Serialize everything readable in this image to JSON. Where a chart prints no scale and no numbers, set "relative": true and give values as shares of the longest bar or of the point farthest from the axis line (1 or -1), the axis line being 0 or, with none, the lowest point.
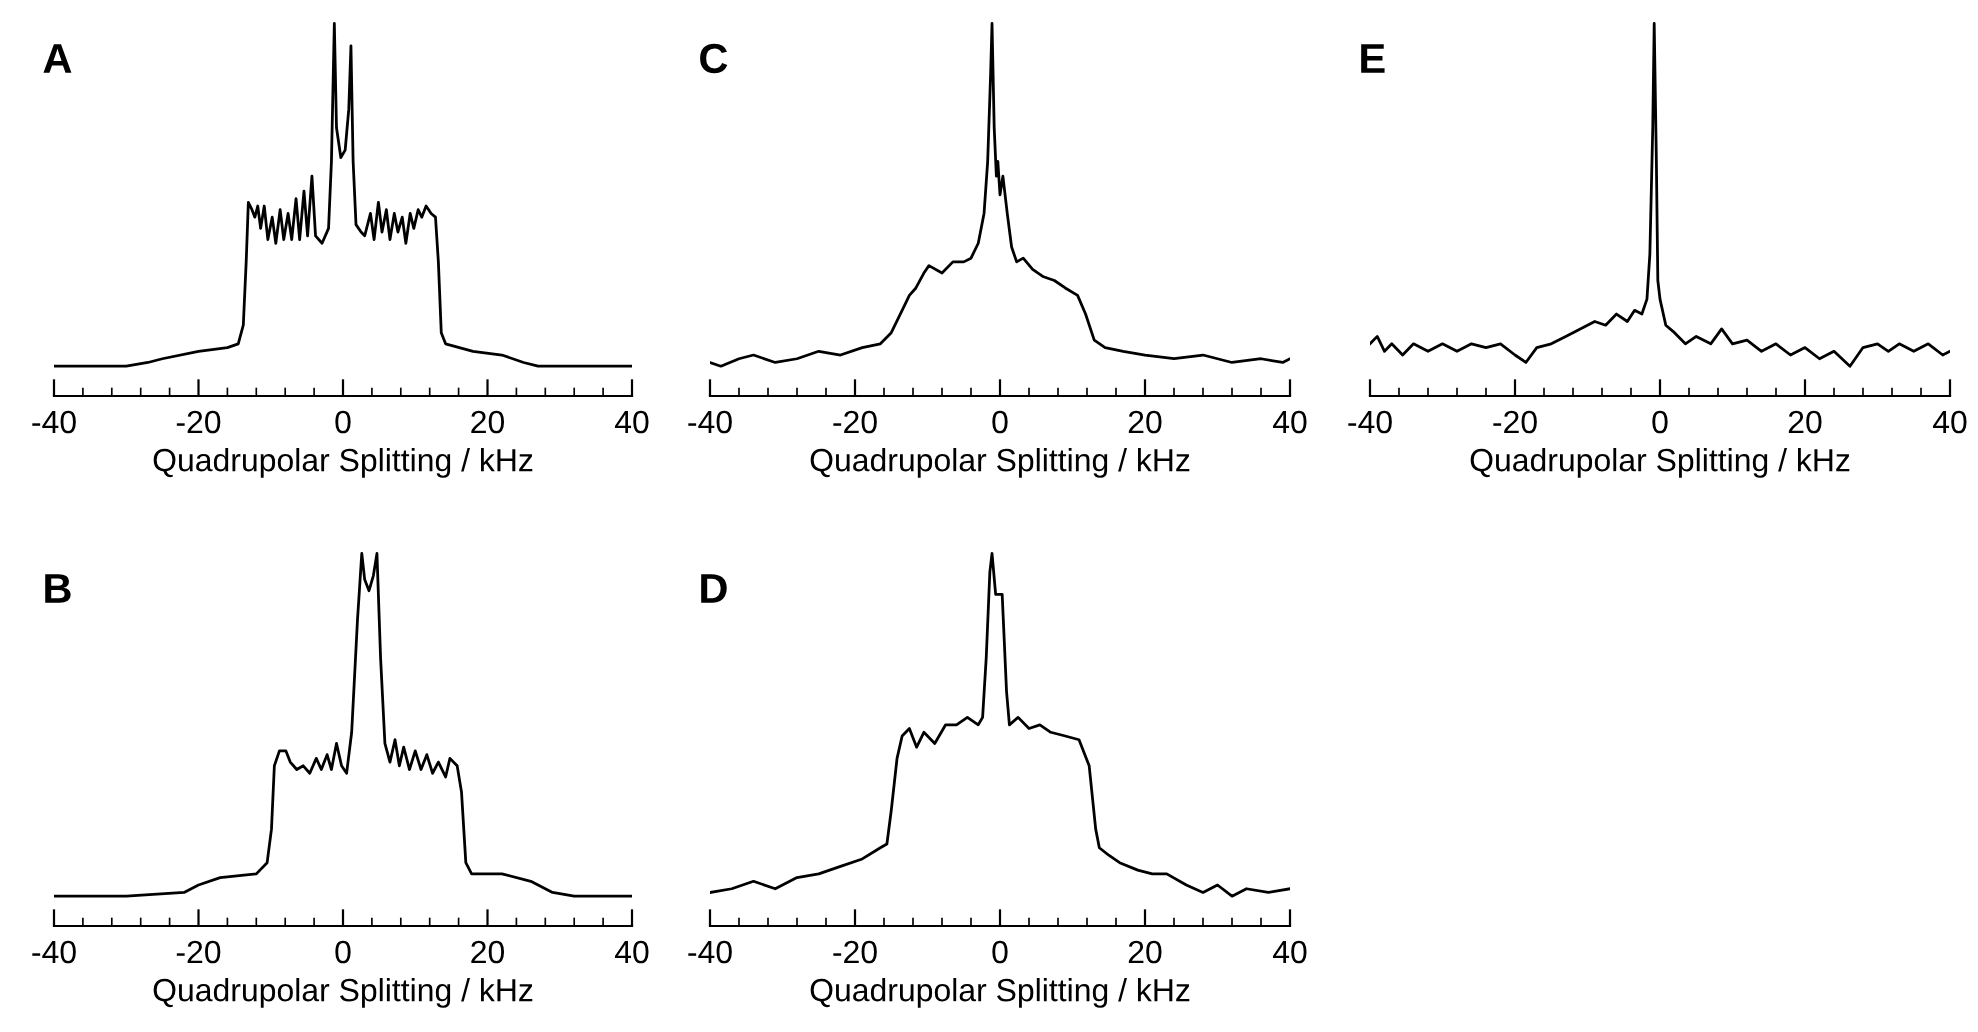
{
  "chart_data": [
    {
      "type": "line",
      "title": "A",
      "xlabel": "Quadrupolar Splitting / kHz",
      "relative": true,
      "xlim": [
        -40,
        40
      ],
      "xticks": [
        -40,
        {
          "value": -36,
          "label": null
        },
        {
          "value": -32,
          "label": null
        },
        {
          "value": -28,
          "label": null
        },
        {
          "value": -24,
          "label": null
        },
        -20,
        {
          "value": -16,
          "label": null
        },
        {
          "value": -12,
          "label": null
        },
        {
          "value": -8,
          "label": null
        },
        {
          "value": -4,
          "label": null
        },
        0,
        {
          "value": 4,
          "label": null
        },
        {
          "value": 8,
          "label": null
        },
        {
          "value": 12,
          "label": null
        },
        {
          "value": 16,
          "label": null
        },
        20,
        {
          "value": 24,
          "label": null
        },
        {
          "value": 28,
          "label": null
        },
        {
          "value": 32,
          "label": null
        },
        {
          "value": 36,
          "label": null
        },
        40
      ],
      "series": [
        {
          "color": "#000000",
          "x": [
            -40,
            -30,
            -27,
            -25,
            -20,
            -16,
            -14.5,
            -13.8,
            -13.4,
            -13.1,
            -12.6,
            -12.2,
            -11.8,
            -11.4,
            -10.9,
            -10.4,
            -9.8,
            -9.3,
            -8.7,
            -8.2,
            -7.6,
            -7.1,
            -6.5,
            -6.0,
            -5.4,
            -4.9,
            -4.3,
            -3.8,
            -2.9,
            -2.0,
            -1.6,
            -1.2,
            -0.9,
            -0.3,
            0.3,
            0.8,
            1.1,
            1.4,
            1.8,
            2.5,
            3.0,
            3.8,
            4.3,
            4.9,
            5.4,
            6.0,
            6.5,
            7.1,
            7.6,
            8.2,
            8.7,
            9.3,
            9.8,
            10.4,
            10.9,
            11.5,
            12.2,
            12.8,
            13.2,
            13.6,
            14.2,
            18,
            22,
            25,
            27,
            40
          ],
          "values": [
            0.08,
            0.08,
            0.09,
            0.1,
            0.12,
            0.13,
            0.14,
            0.19,
            0.36,
            0.52,
            0.5,
            0.48,
            0.51,
            0.45,
            0.51,
            0.42,
            0.48,
            0.41,
            0.5,
            0.42,
            0.49,
            0.42,
            0.53,
            0.42,
            0.55,
            0.43,
            0.59,
            0.43,
            0.41,
            0.45,
            0.63,
            1.0,
            0.72,
            0.64,
            0.66,
            0.77,
            0.94,
            0.63,
            0.46,
            0.44,
            0.43,
            0.49,
            0.42,
            0.52,
            0.44,
            0.5,
            0.42,
            0.49,
            0.44,
            0.48,
            0.41,
            0.49,
            0.45,
            0.5,
            0.48,
            0.51,
            0.49,
            0.48,
            0.36,
            0.17,
            0.14,
            0.12,
            0.11,
            0.09,
            0.08,
            0.08
          ]
        }
      ]
    },
    {
      "type": "line",
      "title": "C",
      "xlabel": "Quadrupolar Splitting / kHz",
      "relative": true,
      "xlim": [
        -40,
        40
      ],
      "xticks": [
        -40,
        {
          "value": -36,
          "label": null
        },
        {
          "value": -32,
          "label": null
        },
        {
          "value": -28,
          "label": null
        },
        {
          "value": -24,
          "label": null
        },
        -20,
        {
          "value": -16,
          "label": null
        },
        {
          "value": -12,
          "label": null
        },
        {
          "value": -8,
          "label": null
        },
        {
          "value": -4,
          "label": null
        },
        0,
        {
          "value": 4,
          "label": null
        },
        {
          "value": 8,
          "label": null
        },
        {
          "value": 12,
          "label": null
        },
        {
          "value": 16,
          "label": null
        },
        20,
        {
          "value": 24,
          "label": null
        },
        {
          "value": 28,
          "label": null
        },
        {
          "value": 32,
          "label": null
        },
        {
          "value": 36,
          "label": null
        },
        40
      ],
      "series": [
        {
          "color": "#000000",
          "x": [
            -40,
            -38.5,
            -36,
            -34,
            -31,
            -28,
            -25,
            -22,
            -19,
            -16.5,
            -15,
            -13.5,
            -12.5,
            -11.6,
            -10.5,
            -9.8,
            -8,
            -6.5,
            -5,
            -4,
            -3,
            -2.2,
            -1.7,
            -1.3,
            -1.1,
            -0.8,
            -0.5,
            -0.3,
            0,
            0.4,
            1.0,
            1.6,
            2.3,
            3.2,
            4.5,
            6,
            7.5,
            9,
            10.7,
            11.8,
            13,
            14.5,
            17,
            20,
            24,
            28,
            32,
            36,
            39,
            40
          ],
          "values": [
            0.09,
            0.08,
            0.1,
            0.11,
            0.09,
            0.1,
            0.12,
            0.11,
            0.13,
            0.14,
            0.17,
            0.23,
            0.27,
            0.29,
            0.33,
            0.35,
            0.33,
            0.36,
            0.36,
            0.37,
            0.41,
            0.49,
            0.63,
            0.86,
            1.0,
            0.72,
            0.59,
            0.63,
            0.54,
            0.59,
            0.49,
            0.4,
            0.36,
            0.37,
            0.34,
            0.32,
            0.31,
            0.29,
            0.27,
            0.22,
            0.15,
            0.13,
            0.12,
            0.11,
            0.1,
            0.11,
            0.09,
            0.1,
            0.09,
            0.1
          ]
        }
      ]
    },
    {
      "type": "line",
      "title": "E",
      "xlabel": "Quadrupolar Splitting / kHz",
      "relative": true,
      "xlim": [
        -40,
        40
      ],
      "xticks": [
        -40,
        {
          "value": -36,
          "label": null
        },
        {
          "value": -32,
          "label": null
        },
        {
          "value": -28,
          "label": null
        },
        {
          "value": -24,
          "label": null
        },
        -20,
        {
          "value": -16,
          "label": null
        },
        {
          "value": -12,
          "label": null
        },
        {
          "value": -8,
          "label": null
        },
        {
          "value": -4,
          "label": null
        },
        0,
        {
          "value": 4,
          "label": null
        },
        {
          "value": 8,
          "label": null
        },
        {
          "value": 12,
          "label": null
        },
        {
          "value": 16,
          "label": null
        },
        20,
        {
          "value": 24,
          "label": null
        },
        {
          "value": 28,
          "label": null
        },
        {
          "value": 32,
          "label": null
        },
        {
          "value": 36,
          "label": null
        },
        40
      ],
      "series": [
        {
          "color": "#000000",
          "x": [
            -40,
            -39,
            -38,
            -37,
            -35.5,
            -34,
            -32,
            -30,
            -28,
            -26,
            -24,
            -22,
            -20,
            -18.5,
            -17,
            -15,
            -13,
            -11,
            -9,
            -7.5,
            -6,
            -4.5,
            -3.5,
            -2.5,
            -1.8,
            -1.4,
            -1.0,
            -0.8,
            -0.5,
            -0.3,
            0,
            0.8,
            2,
            3.5,
            5,
            7,
            8.5,
            10,
            12,
            14,
            16,
            18,
            20,
            22,
            24,
            26.2,
            28,
            30,
            31.5,
            33,
            35,
            37,
            39,
            40
          ],
          "values": [
            0.14,
            0.16,
            0.12,
            0.14,
            0.11,
            0.14,
            0.12,
            0.14,
            0.12,
            0.14,
            0.13,
            0.14,
            0.11,
            0.09,
            0.13,
            0.14,
            0.16,
            0.18,
            0.2,
            0.19,
            0.22,
            0.2,
            0.23,
            0.22,
            0.26,
            0.38,
            0.72,
            1.0,
            0.63,
            0.31,
            0.26,
            0.19,
            0.17,
            0.14,
            0.16,
            0.14,
            0.18,
            0.14,
            0.15,
            0.12,
            0.14,
            0.11,
            0.13,
            0.1,
            0.12,
            0.08,
            0.13,
            0.14,
            0.12,
            0.14,
            0.12,
            0.14,
            0.11,
            0.12
          ]
        }
      ]
    },
    {
      "type": "line",
      "title": "B",
      "xlabel": "Quadrupolar Splitting / kHz",
      "relative": true,
      "xlim": [
        -40,
        40
      ],
      "xticks": [
        -40,
        {
          "value": -36,
          "label": null
        },
        {
          "value": -32,
          "label": null
        },
        {
          "value": -28,
          "label": null
        },
        {
          "value": -24,
          "label": null
        },
        -20,
        {
          "value": -16,
          "label": null
        },
        {
          "value": -12,
          "label": null
        },
        {
          "value": -8,
          "label": null
        },
        {
          "value": -4,
          "label": null
        },
        0,
        {
          "value": 4,
          "label": null
        },
        {
          "value": 8,
          "label": null
        },
        {
          "value": 12,
          "label": null
        },
        {
          "value": 16,
          "label": null
        },
        20,
        {
          "value": 24,
          "label": null
        },
        {
          "value": 28,
          "label": null
        },
        {
          "value": 32,
          "label": null
        },
        {
          "value": 36,
          "label": null
        },
        40
      ],
      "series": [
        {
          "color": "#000000",
          "x": [
            -40,
            -30,
            -22,
            -20,
            -17,
            -12,
            -10.5,
            -9.9,
            -9.5,
            -8.8,
            -7.9,
            -7.3,
            -6.4,
            -5.5,
            -4.6,
            -3.7,
            -3.0,
            -2.2,
            -1.6,
            -0.9,
            -0.2,
            0.5,
            1.2,
            2.0,
            2.6,
            3.0,
            3.6,
            4.2,
            4.7,
            5.2,
            5.8,
            6.5,
            7.2,
            7.8,
            8.4,
            9.2,
            10.0,
            10.8,
            11.6,
            12.4,
            13.2,
            14.2,
            14.8,
            15.8,
            16.4,
            17.0,
            17.8,
            22,
            26,
            29,
            32,
            40
          ],
          "values": [
            0.08,
            0.08,
            0.09,
            0.11,
            0.13,
            0.14,
            0.17,
            0.26,
            0.43,
            0.47,
            0.47,
            0.44,
            0.42,
            0.43,
            0.41,
            0.45,
            0.42,
            0.46,
            0.42,
            0.49,
            0.43,
            0.41,
            0.52,
            0.82,
            1.0,
            0.93,
            0.9,
            0.94,
            1.0,
            0.72,
            0.49,
            0.44,
            0.5,
            0.43,
            0.48,
            0.42,
            0.47,
            0.42,
            0.46,
            0.41,
            0.44,
            0.4,
            0.45,
            0.43,
            0.36,
            0.17,
            0.14,
            0.14,
            0.12,
            0.09,
            0.08,
            0.08
          ]
        }
      ]
    },
    {
      "type": "line",
      "title": "D",
      "xlabel": "Quadrupolar Splitting / kHz",
      "relative": true,
      "xlim": [
        -40,
        40
      ],
      "xticks": [
        -40,
        {
          "value": -36,
          "label": null
        },
        {
          "value": -32,
          "label": null
        },
        {
          "value": -28,
          "label": null
        },
        {
          "value": -24,
          "label": null
        },
        -20,
        {
          "value": -16,
          "label": null
        },
        {
          "value": -12,
          "label": null
        },
        {
          "value": -8,
          "label": null
        },
        {
          "value": -4,
          "label": null
        },
        0,
        {
          "value": 4,
          "label": null
        },
        {
          "value": 8,
          "label": null
        },
        {
          "value": 12,
          "label": null
        },
        {
          "value": 16,
          "label": null
        },
        20,
        {
          "value": 24,
          "label": null
        },
        {
          "value": 28,
          "label": null
        },
        {
          "value": 32,
          "label": null
        },
        {
          "value": 36,
          "label": null
        },
        40
      ],
      "series": [
        {
          "color": "#000000",
          "x": [
            -40,
            -37,
            -34,
            -31,
            -28,
            -25,
            -22,
            -19,
            -16.5,
            -15.6,
            -15,
            -14.2,
            -13.5,
            -12.5,
            -11.5,
            -10.5,
            -9,
            -7.5,
            -6,
            -4.5,
            -3,
            -2.4,
            -1.9,
            -1.4,
            -1.1,
            -0.6,
            0.3,
            0.9,
            1.3,
            2.5,
            4,
            5.5,
            7,
            9,
            10.9,
            12.3,
            13.2,
            13.7,
            15,
            16.5,
            19,
            21,
            23,
            25.7,
            28,
            30,
            32,
            34,
            37,
            40
          ],
          "values": [
            0.09,
            0.1,
            0.12,
            0.1,
            0.13,
            0.14,
            0.16,
            0.18,
            0.21,
            0.22,
            0.31,
            0.45,
            0.51,
            0.53,
            0.48,
            0.52,
            0.49,
            0.54,
            0.54,
            0.56,
            0.54,
            0.56,
            0.72,
            0.95,
            1.0,
            0.89,
            0.89,
            0.63,
            0.54,
            0.56,
            0.53,
            0.54,
            0.52,
            0.51,
            0.5,
            0.43,
            0.26,
            0.21,
            0.19,
            0.17,
            0.15,
            0.14,
            0.14,
            0.11,
            0.09,
            0.11,
            0.08,
            0.1,
            0.09,
            0.1
          ]
        }
      ]
    }
  ]
}
